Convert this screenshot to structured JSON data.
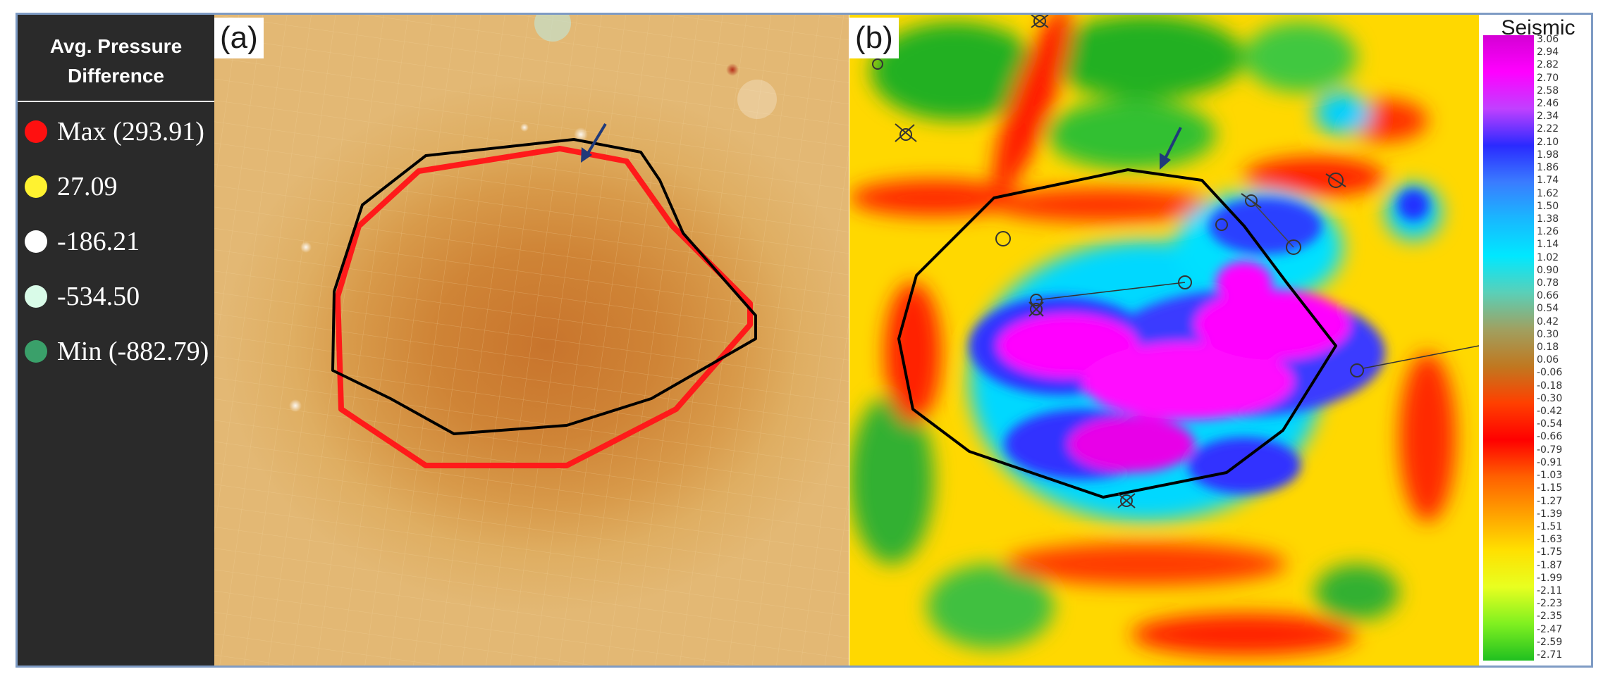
{
  "legend": {
    "title_line1": "Avg. Pressure",
    "title_line2": "Difference",
    "items": [
      {
        "label": "Max (293.91)",
        "color": "#ff1010"
      },
      {
        "label": "27.09",
        "color": "#fff230"
      },
      {
        "label": "-186.21",
        "color": "#ffffff"
      },
      {
        "label": "-534.50",
        "color": "#d9fbe8"
      },
      {
        "label": "Min (-882.79)",
        "color": "#3aa06a"
      }
    ]
  },
  "panel_a": {
    "label": "(a)",
    "arrow_icon": "arrow-icon",
    "boundary_color": "#000000",
    "contour_color": "#ff1a1a"
  },
  "panel_b": {
    "label": "(b)",
    "arrow_icon": "arrow-icon",
    "boundary_color": "#000000"
  },
  "colorbar": {
    "title": "Seismic",
    "ticks": [
      "3.06",
      "2.94",
      "2.82",
      "2.70",
      "2.58",
      "2.46",
      "2.34",
      "2.22",
      "2.10",
      "1.98",
      "1.86",
      "1.74",
      "1.62",
      "1.50",
      "1.38",
      "1.26",
      "1.14",
      "1.02",
      "0.90",
      "0.78",
      "0.66",
      "0.54",
      "0.42",
      "0.30",
      "0.18",
      "0.06",
      "-0.06",
      "-0.18",
      "-0.30",
      "-0.42",
      "-0.54",
      "-0.66",
      "-0.79",
      "-0.91",
      "-1.03",
      "-1.15",
      "-1.27",
      "-1.39",
      "-1.51",
      "-1.63",
      "-1.75",
      "-1.87",
      "-1.99",
      "-2.11",
      "-2.23",
      "-2.35",
      "-2.47",
      "-2.59",
      "-2.71"
    ],
    "stops": [
      "#d400d4",
      "#ff00ff",
      "#c040ff",
      "#2a2aff",
      "#3a7cff",
      "#18b8ff",
      "#00e8ff",
      "#5ad0b8",
      "#a0a060",
      "#c07820",
      "#ff4000",
      "#ff0000",
      "#ff6000",
      "#ffa000",
      "#ffe000",
      "#e8ff20",
      "#80f020",
      "#20c020"
    ]
  }
}
